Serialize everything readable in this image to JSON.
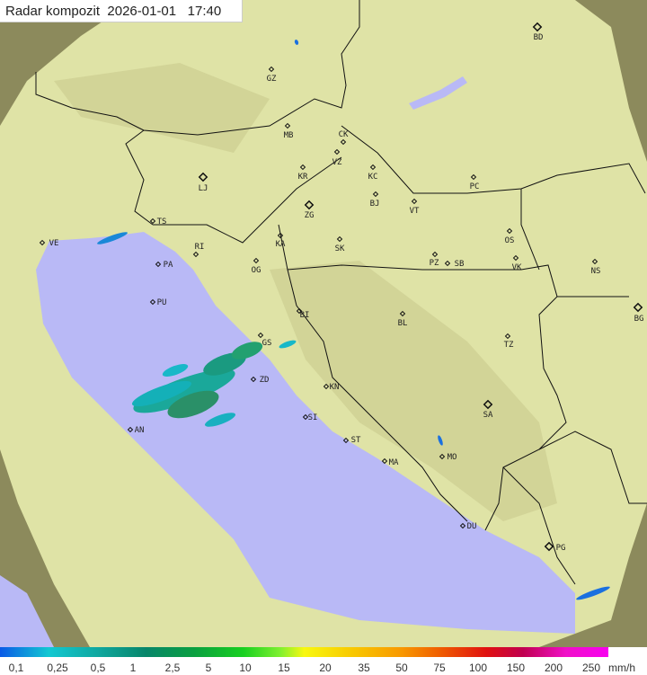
{
  "header": {
    "title": "Radar kompozit",
    "date": "2026-01-01",
    "time": "17:40"
  },
  "legend": {
    "values": [
      "0,1",
      "0,25",
      "0,5",
      "1",
      "2,5",
      "5",
      "10",
      "15",
      "20",
      "35",
      "50",
      "75",
      "100",
      "150",
      "200",
      "250"
    ],
    "unit": "mm/h"
  },
  "colors": {
    "sea": "#b8b8f8",
    "land": "#e6e8a8",
    "outside": "#8a8a5a",
    "rain": "#1aa89a"
  },
  "cities": [
    "BD",
    "GZ",
    "MB",
    "CK",
    "VZ",
    "KC",
    "KR",
    "PC",
    "LJ",
    "BJ",
    "VT",
    "ZG",
    "TS",
    "VE",
    "RI",
    "KA",
    "SK",
    "OS",
    "VK",
    "NS",
    "PA",
    "OG",
    "PZ",
    "SB",
    "PU",
    "BG",
    "BI",
    "BL",
    "GS",
    "TZ",
    "ZD",
    "KN",
    "SA",
    "SI",
    "AN",
    "ST",
    "MO",
    "MA",
    "DU",
    "PG"
  ],
  "capitals": [
    "BD",
    "LJ",
    "ZG",
    "BG",
    "SA",
    "PG"
  ]
}
